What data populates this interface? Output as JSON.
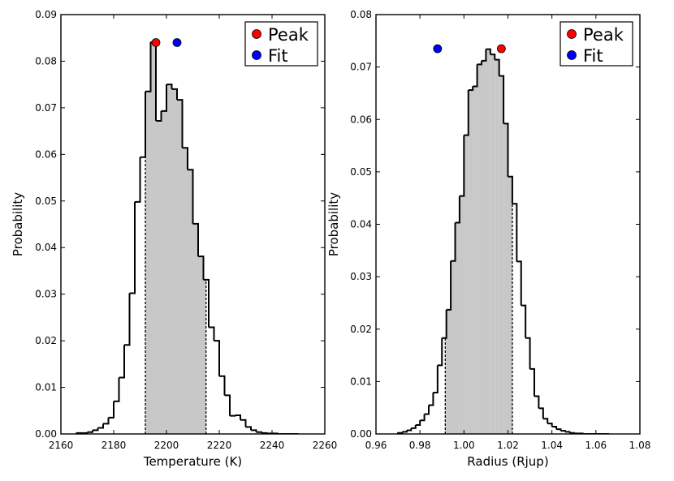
{
  "chart_data": [
    {
      "type": "histogram",
      "xlabel": "Temperature (K)",
      "ylabel": "Probability",
      "xlim": [
        2160,
        2260
      ],
      "ylim": [
        0,
        0.09
      ],
      "xticks": [
        2160,
        2180,
        2200,
        2220,
        2240,
        2260
      ],
      "xtick_labels": [
        "2160",
        "2180",
        "2200",
        "2220",
        "2240",
        "2260"
      ],
      "yticks": [
        0,
        0.01,
        0.02,
        0.03,
        0.04,
        0.05,
        0.06,
        0.07,
        0.08,
        0.09
      ],
      "ytick_labels": [
        "0.00",
        "0.01",
        "0.02",
        "0.03",
        "0.04",
        "0.05",
        "0.06",
        "0.07",
        "0.08",
        "0.09"
      ],
      "bin_edges": [
        2166,
        2170,
        2172,
        2174,
        2176,
        2178,
        2180,
        2182,
        2184,
        2186,
        2188,
        2190,
        2192,
        2194,
        2196,
        2198,
        2200,
        2202,
        2204,
        2206,
        2208,
        2210,
        2212,
        2214,
        2216,
        2218,
        2220,
        2222,
        2224,
        2226,
        2228,
        2230,
        2232,
        2234,
        2236,
        2238,
        2242,
        2250
      ],
      "probabilities": [
        0.0002,
        0.0004,
        0.0008,
        0.0013,
        0.0022,
        0.0035,
        0.007,
        0.0121,
        0.0191,
        0.0302,
        0.0498,
        0.0594,
        0.0735,
        0.0841,
        0.0672,
        0.0693,
        0.075,
        0.074,
        0.0717,
        0.0614,
        0.0567,
        0.0451,
        0.0381,
        0.0331,
        0.0229,
        0.02,
        0.0124,
        0.0083,
        0.0039,
        0.004,
        0.003,
        0.0015,
        0.0008,
        0.0004,
        0.0002,
        0.0001,
        0.0
      ],
      "shaded_range": [
        2192,
        2215
      ],
      "markers": [
        {
          "name": "Peak",
          "x": 2196,
          "y": 0.084,
          "color": "#ff0000"
        },
        {
          "name": "Fit",
          "x": 2204,
          "y": 0.084,
          "color": "#0000ff"
        }
      ],
      "legend": {
        "entries": [
          "Peak",
          "Fit"
        ],
        "position": "top-right"
      }
    },
    {
      "type": "histogram",
      "xlabel": "Radius (Rjup)",
      "ylabel": "Probability",
      "xlim": [
        0.96,
        1.08
      ],
      "ylim": [
        0,
        0.08
      ],
      "xticks": [
        0.96,
        0.98,
        1.0,
        1.02,
        1.04,
        1.06,
        1.08
      ],
      "xtick_labels": [
        "0.96",
        "0.98",
        "1.00",
        "1.02",
        "1.04",
        "1.06",
        "1.08"
      ],
      "yticks": [
        0,
        0.01,
        0.02,
        0.03,
        0.04,
        0.05,
        0.06,
        0.07,
        0.08
      ],
      "ytick_labels": [
        "0.00",
        "0.01",
        "0.02",
        "0.03",
        "0.04",
        "0.05",
        "0.06",
        "0.07",
        "0.08"
      ],
      "bin_edges": [
        0.97,
        0.972,
        0.974,
        0.976,
        0.978,
        0.98,
        0.982,
        0.984,
        0.986,
        0.988,
        0.99,
        0.992,
        0.994,
        0.996,
        0.998,
        1.0,
        1.002,
        1.004,
        1.006,
        1.008,
        1.01,
        1.012,
        1.014,
        1.016,
        1.018,
        1.02,
        1.022,
        1.024,
        1.026,
        1.028,
        1.03,
        1.032,
        1.034,
        1.036,
        1.038,
        1.04,
        1.042,
        1.044,
        1.046,
        1.048,
        1.05,
        1.052,
        1.054,
        1.058,
        1.066
      ],
      "probabilities": [
        0.0002,
        0.0004,
        0.0007,
        0.0011,
        0.0017,
        0.0026,
        0.0038,
        0.0055,
        0.0079,
        0.0131,
        0.0183,
        0.0237,
        0.033,
        0.0403,
        0.0454,
        0.057,
        0.0656,
        0.0663,
        0.0705,
        0.0712,
        0.0734,
        0.0724,
        0.0714,
        0.0683,
        0.0592,
        0.0491,
        0.0439,
        0.0329,
        0.0245,
        0.0183,
        0.0124,
        0.0072,
        0.0049,
        0.0029,
        0.002,
        0.0014,
        0.0009,
        0.0006,
        0.0004,
        0.0002,
        0.0001,
        0.0001,
        0.0,
        0.0
      ],
      "shaded_range": [
        0.9915,
        1.022
      ],
      "markers": [
        {
          "name": "Peak",
          "x": 1.017,
          "y": 0.0735,
          "color": "#ff0000"
        },
        {
          "name": "Fit",
          "x": 0.988,
          "y": 0.0735,
          "color": "#0000ff"
        }
      ],
      "legend": {
        "entries": [
          "Peak",
          "Fit"
        ],
        "position": "top-right"
      }
    }
  ]
}
